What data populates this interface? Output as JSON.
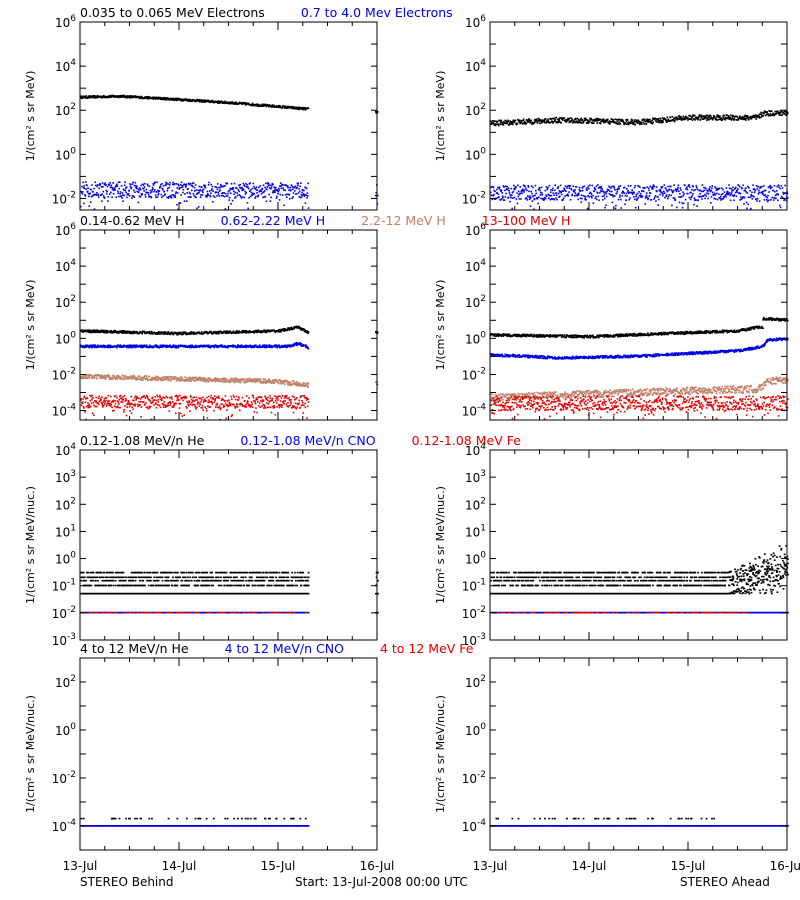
{
  "figure": {
    "footer_left": "STEREO Behind",
    "footer_center": "Start: 13-Jul-2008 00:00 UTC",
    "footer_right": "STEREO Ahead",
    "x_tick_labels": [
      "13-Jul",
      "14-Jul",
      "15-Jul",
      "16-Jul"
    ]
  },
  "colors": {
    "black": "#000000",
    "blue": "#0000e0",
    "tan": "#c08068",
    "red": "#e00000"
  },
  "chart_data": [
    {
      "type": "scatter",
      "id": "electrons",
      "log_y": true,
      "x_unit": "days since 13-Jul-2008 00:00 UTC",
      "xlim": [
        0,
        3
      ],
      "ylim": [
        0.003,
        1000000
      ],
      "ylabel": "1/(cm² s sr MeV)",
      "y_ticks": [
        {
          "v": 1000000,
          "m": "10",
          "e": "6"
        },
        {
          "v": 10000,
          "m": "10",
          "e": "4"
        },
        {
          "v": 100,
          "m": "10",
          "e": "2"
        },
        {
          "v": 1,
          "m": "10",
          "e": "0"
        },
        {
          "v": 0.01,
          "m": "10",
          "e": "-2"
        }
      ],
      "legend": [
        {
          "text": "0.035 to 0.065 MeV Electrons",
          "color": "black"
        },
        {
          "text": "0.7 to 4.0 Mev Electrons",
          "color": "blue"
        }
      ],
      "behind": [
        {
          "name": "0.035 to 0.065 MeV Electrons",
          "color": "black",
          "style": "dense",
          "segments": [
            [
              0,
              2.3,
              [
                [
                  0,
                  380
                ],
                [
                  0.4,
                  420
                ],
                [
                  1.0,
                  300
                ],
                [
                  1.6,
                  200
                ],
                [
                  2.3,
                  110
                ]
              ]
            ],
            [
              2.98,
              3.0,
              [
                [
                  2.98,
                  80
                ],
                [
                  3.0,
                  80
                ]
              ]
            ]
          ],
          "spread": 0.05
        },
        {
          "name": "0.7 to 4.0 Mev Electrons",
          "color": "blue",
          "style": "dense",
          "segments": [
            [
              0,
              2.3,
              [
                [
                  0,
                  0.025
                ],
                [
                  2.3,
                  0.022
                ]
              ]
            ],
            [
              2.98,
              3.0,
              [
                [
                  2.98,
                  0.02
                ],
                [
                  3.0,
                  0.02
                ]
              ]
            ]
          ],
          "spread": 0.35
        }
      ],
      "ahead": [
        {
          "name": "0.035 to 0.065 MeV Electrons",
          "color": "black",
          "style": "dense",
          "segments": [
            [
              0,
              3.0,
              [
                [
                  0,
                  25
                ],
                [
                  0.7,
                  35
                ],
                [
                  1.5,
                  28
                ],
                [
                  2.0,
                  45
                ],
                [
                  2.7,
                  45
                ],
                [
                  2.75,
                  70
                ],
                [
                  3.0,
                  75
                ]
              ]
            ]
          ],
          "spread": 0.12
        },
        {
          "name": "0.7 to 4.0 Mev Electrons",
          "color": "blue",
          "style": "dense",
          "segments": [
            [
              0,
              3.0,
              [
                [
                  0,
                  0.018
                ],
                [
                  3.0,
                  0.018
                ]
              ]
            ]
          ],
          "spread": 0.35
        }
      ]
    },
    {
      "type": "scatter",
      "id": "protons",
      "log_y": true,
      "x_unit": "days since 13-Jul-2008 00:00 UTC",
      "xlim": [
        0,
        3
      ],
      "ylim": [
        3e-05,
        1000000
      ],
      "ylabel": "1/(cm² s sr MeV)",
      "y_ticks": [
        {
          "v": 1000000,
          "m": "10",
          "e": "6"
        },
        {
          "v": 10000,
          "m": "10",
          "e": "4"
        },
        {
          "v": 100,
          "m": "10",
          "e": "2"
        },
        {
          "v": 1,
          "m": "10",
          "e": "0"
        },
        {
          "v": 0.01,
          "m": "10",
          "e": "-2"
        },
        {
          "v": 0.0001,
          "m": "10",
          "e": "-4"
        }
      ],
      "legend": [
        {
          "text": "0.14-0.62 MeV H",
          "color": "black"
        },
        {
          "text": "0.62-2.22 MeV H",
          "color": "blue"
        },
        {
          "text": "2.2-12 MeV H",
          "color": "tan"
        },
        {
          "text": "13-100 MeV H",
          "color": "red"
        }
      ],
      "behind": [
        {
          "name": "0.14-0.62 MeV H",
          "color": "black",
          "style": "dense",
          "segments": [
            [
              0,
              2.3,
              [
                [
                  0,
                  2.5
                ],
                [
                  1.0,
                  1.8
                ],
                [
                  2.0,
                  2.5
                ],
                [
                  2.2,
                  4
                ],
                [
                  2.3,
                  2
                ]
              ]
            ],
            [
              2.98,
              3.0,
              [
                [
                  2.98,
                  2
                ],
                [
                  3.0,
                  2
                ]
              ]
            ]
          ],
          "spread": 0.07
        },
        {
          "name": "0.62-2.22 MeV H",
          "color": "blue",
          "style": "dense",
          "segments": [
            [
              0,
              2.3,
              [
                [
                  0,
                  0.35
                ],
                [
                  2.1,
                  0.35
                ],
                [
                  2.2,
                  0.5
                ],
                [
                  2.3,
                  0.3
                ]
              ]
            ]
          ],
          "spread": 0.07
        },
        {
          "name": "2.2-12 MeV H",
          "color": "tan",
          "style": "dense",
          "segments": [
            [
              0,
              2.3,
              [
                [
                  0,
                  0.0075
                ],
                [
                  1.0,
                  0.0055
                ],
                [
                  2.0,
                  0.004
                ],
                [
                  2.3,
                  0.0025
                ]
              ]
            ],
            [
              2.98,
              3.0,
              [
                [
                  2.98,
                  0.003
                ],
                [
                  3.0,
                  0.003
                ]
              ]
            ]
          ],
          "spread": 0.12
        },
        {
          "name": "13-100 MeV H",
          "color": "red",
          "style": "dense",
          "segments": [
            [
              0,
              2.3,
              [
                [
                  0,
                  0.0003
                ],
                [
                  2.3,
                  0.0003
                ]
              ]
            ]
          ],
          "spread": 0.35
        }
      ],
      "ahead": [
        {
          "name": "0.14-0.62 MeV H",
          "color": "black",
          "style": "dense",
          "segments": [
            [
              0,
              2.75,
              [
                [
                  0,
                  1.5
                ],
                [
                  1.0,
                  1.2
                ],
                [
                  2.0,
                  2
                ],
                [
                  2.5,
                  2.5
                ],
                [
                  2.7,
                  4
                ]
              ]
            ],
            [
              2.75,
              3.0,
              [
                [
                  2.75,
                  12
                ],
                [
                  3.0,
                  10
                ]
              ]
            ]
          ],
          "spread": 0.07
        },
        {
          "name": "0.62-2.22 MeV H",
          "color": "blue",
          "style": "dense",
          "segments": [
            [
              0,
              3.0,
              [
                [
                  0,
                  0.12
                ],
                [
                  0.7,
                  0.08
                ],
                [
                  1.5,
                  0.1
                ],
                [
                  2.5,
                  0.2
                ],
                [
                  2.75,
                  0.35
                ],
                [
                  2.8,
                  0.8
                ],
                [
                  3.0,
                  0.9
                ]
              ]
            ]
          ],
          "spread": 0.07
        },
        {
          "name": "2.2-12 MeV H",
          "color": "tan",
          "style": "dense",
          "segments": [
            [
              0,
              3.0,
              [
                [
                  0,
                  0.0005
                ],
                [
                  1.0,
                  0.0008
                ],
                [
                  2.0,
                  0.0012
                ],
                [
                  2.7,
                  0.0015
                ],
                [
                  2.8,
                  0.004
                ],
                [
                  3.0,
                  0.005
                ]
              ]
            ]
          ],
          "spread": 0.2
        },
        {
          "name": "13-100 MeV H",
          "color": "red",
          "style": "dense",
          "segments": [
            [
              0,
              3.0,
              [
                [
                  0,
                  0.00025
                ],
                [
                  3.0,
                  0.00025
                ]
              ]
            ]
          ],
          "spread": 0.4
        }
      ]
    },
    {
      "type": "scatter",
      "id": "suprathermal-ions",
      "log_y": true,
      "x_unit": "days since 13-Jul-2008 00:00 UTC",
      "xlim": [
        0,
        3
      ],
      "ylim": [
        0.001,
        10000
      ],
      "ylabel": "1/(cm² s sr MeV/nuc.)",
      "y_ticks": [
        {
          "v": 10000,
          "m": "10",
          "e": "4"
        },
        {
          "v": 1000,
          "m": "10",
          "e": "3"
        },
        {
          "v": 100,
          "m": "10",
          "e": "2"
        },
        {
          "v": 10,
          "m": "10",
          "e": "1"
        },
        {
          "v": 1,
          "m": "10",
          "e": "0"
        },
        {
          "v": 0.1,
          "m": "10",
          "e": "-1"
        },
        {
          "v": 0.01,
          "m": "10",
          "e": "-2"
        },
        {
          "v": 0.001,
          "m": "10",
          "e": "-3"
        }
      ],
      "legend": [
        {
          "text": "0.12-1.08 MeV/n He",
          "color": "black"
        },
        {
          "text": "0.12-1.08 MeV/n CNO",
          "color": "blue"
        },
        {
          "text": "0.12-1.08 MeV Fe",
          "color": "red"
        }
      ],
      "behind": [
        {
          "name": "0.12-1.08 MeV/n He",
          "color": "black",
          "style": "levels",
          "levels": [
            0.05,
            0.1,
            0.15,
            0.2,
            0.3
          ],
          "segments": [
            [
              0,
              2.3
            ],
            [
              2.98,
              3.0
            ]
          ]
        },
        {
          "name": "0.12-1.08 MeV/n CNO",
          "color": "blue",
          "style": "levels",
          "levels": [
            0.01
          ],
          "segments": [
            [
              0,
              2.3
            ],
            [
              2.98,
              3.0
            ]
          ]
        },
        {
          "name": "0.12-1.08 MeV Fe",
          "color": "red",
          "style": "levels",
          "levels": [
            0.01
          ],
          "segments": [
            [
              0,
              2.3
            ]
          ],
          "sparse": true
        }
      ],
      "ahead": [
        {
          "name": "0.12-1.08 MeV/n He",
          "color": "black",
          "style": "levels",
          "levels": [
            0.05,
            0.1,
            0.15,
            0.2,
            0.3
          ],
          "segments": [
            [
              0,
              3.0
            ]
          ],
          "rise": {
            "from": 2.4,
            "to": 3.0,
            "max": 1.5
          }
        },
        {
          "name": "0.12-1.08 MeV/n CNO",
          "color": "blue",
          "style": "levels",
          "levels": [
            0.01
          ],
          "segments": [
            [
              0,
              3.0
            ]
          ]
        },
        {
          "name": "0.12-1.08 MeV Fe",
          "color": "red",
          "style": "levels",
          "levels": [
            0.01
          ],
          "segments": [
            [
              0,
              2.6
            ]
          ],
          "sparse": true
        }
      ]
    },
    {
      "type": "scatter",
      "id": "energetic-ions",
      "log_y": true,
      "x_unit": "days since 13-Jul-2008 00:00 UTC",
      "xlim": [
        0,
        3
      ],
      "ylim": [
        1e-05,
        1000
      ],
      "ylabel": "1/(cm² s sr MeV/nuc.)",
      "y_ticks": [
        {
          "v": 100,
          "m": "10",
          "e": "2"
        },
        {
          "v": 1,
          "m": "10",
          "e": "0"
        },
        {
          "v": 0.01,
          "m": "10",
          "e": "-2"
        },
        {
          "v": 0.0001,
          "m": "10",
          "e": "-4"
        }
      ],
      "legend": [
        {
          "text": "4 to 12 MeV/n He",
          "color": "black"
        },
        {
          "text": "4 to 12 MeV/n CNO",
          "color": "blue"
        },
        {
          "text": "4 to 12 MeV Fe",
          "color": "red"
        }
      ],
      "behind": [
        {
          "name": "4 to 12 MeV/n He",
          "color": "black",
          "style": "levels",
          "levels": [
            0.0001,
            0.0002
          ],
          "segments": [
            [
              0,
              2.3
            ]
          ],
          "sparse": true
        },
        {
          "name": "4 to 12 MeV/n CNO",
          "color": "blue",
          "style": "levels",
          "levels": [
            0.0001
          ],
          "segments": [
            [
              0,
              2.3
            ]
          ]
        }
      ],
      "ahead": [
        {
          "name": "4 to 12 MeV/n He",
          "color": "black",
          "style": "levels",
          "levels": [
            0.0001,
            0.0002
          ],
          "segments": [
            [
              0,
              2.3
            ]
          ],
          "sparse": true
        },
        {
          "name": "4 to 12 MeV/n CNO",
          "color": "blue",
          "style": "levels",
          "levels": [
            0.0001
          ],
          "segments": [
            [
              0,
              3.0
            ]
          ]
        }
      ]
    }
  ]
}
